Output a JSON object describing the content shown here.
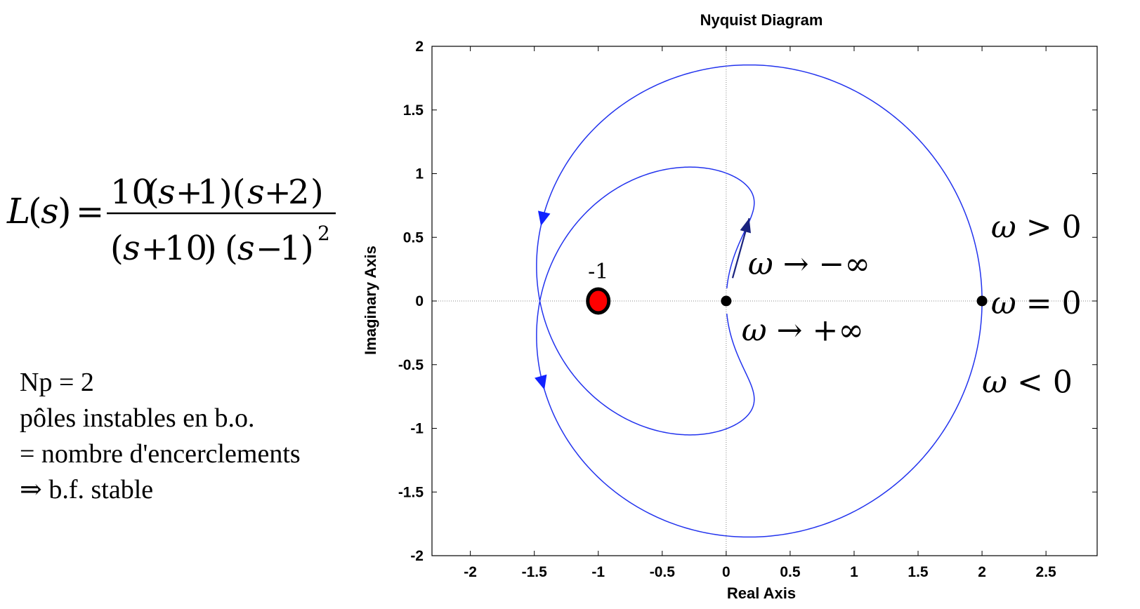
{
  "formula": {
    "lhs_fn": "L",
    "lhs_var": "s",
    "equals": "=",
    "numerator": {
      "coef": "10",
      "factors": [
        {
          "var": "s",
          "op": "+",
          "const": "1"
        },
        {
          "var": "s",
          "op": "+",
          "const": "2"
        }
      ]
    },
    "denominator": {
      "factors": [
        {
          "var": "s",
          "op": "+",
          "const": "10",
          "exp": ""
        },
        {
          "var": "s",
          "op": "−",
          "const": "1",
          "exp": "2"
        }
      ]
    }
  },
  "notes": [
    "Np = 2",
    "pôles instables en b.o.",
    "= nombre d'encerclements",
    "⇒ b.f. stable"
  ],
  "chart_data": {
    "type": "line",
    "title": "Nyquist Diagram",
    "xlabel": "Real Axis",
    "ylabel": "Imaginary Axis",
    "xlim": [
      -2.3,
      2.9
    ],
    "ylim": [
      -2,
      2
    ],
    "xticks": [
      -2,
      -1.5,
      -1,
      -0.5,
      0,
      0.5,
      1,
      1.5,
      2,
      2.5
    ],
    "xtick_labels": [
      "-2",
      "-1.5",
      "-1",
      "-0.5",
      "0",
      "0.5",
      "1",
      "1.5",
      "2",
      "2.5"
    ],
    "yticks": [
      2,
      1.5,
      1,
      0.5,
      0,
      -0.5,
      -1,
      -1.5,
      -2
    ],
    "ytick_labels": [
      "2",
      "1.5",
      "1",
      "0.5",
      "0",
      "-0.5",
      "-1",
      "-1.5",
      "-2"
    ],
    "curve_color": "#2233ee",
    "critical_point": {
      "x": -1,
      "y": 0,
      "label": "-1",
      "fill": "#ff0000",
      "stroke": "#000000"
    },
    "marked_points": [
      {
        "x": 0,
        "y": 0
      },
      {
        "x": 2,
        "y": 0
      }
    ],
    "annotations": [
      {
        "omega": "ω",
        "rel": "→",
        "rhs": "−∞",
        "x": 0.17,
        "y": 0.21
      },
      {
        "omega": "ω",
        "rel": "→",
        "rhs": "+∞",
        "x": 0.12,
        "y": -0.31
      },
      {
        "omega": "ω",
        "rel": ">",
        "rhs": "0",
        "x": 2.07,
        "y": 0.5
      },
      {
        "omega": "ω",
        "rel": "=",
        "rhs": "0",
        "x": 2.07,
        "y": -0.1
      },
      {
        "omega": "ω",
        "rel": "<",
        "rhs": "0",
        "x": 2.0,
        "y": -0.72
      }
    ]
  }
}
